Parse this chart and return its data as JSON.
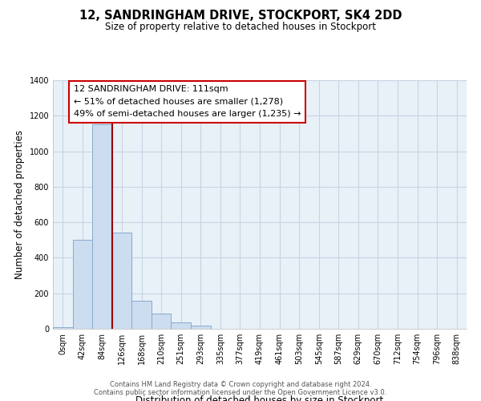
{
  "title": "12, SANDRINGHAM DRIVE, STOCKPORT, SK4 2DD",
  "subtitle": "Size of property relative to detached houses in Stockport",
  "xlabel": "Distribution of detached houses by size in Stockport",
  "ylabel": "Number of detached properties",
  "bar_labels": [
    "0sqm",
    "42sqm",
    "84sqm",
    "126sqm",
    "168sqm",
    "210sqm",
    "251sqm",
    "293sqm",
    "335sqm",
    "377sqm",
    "419sqm",
    "461sqm",
    "503sqm",
    "545sqm",
    "587sqm",
    "629sqm",
    "670sqm",
    "712sqm",
    "754sqm",
    "796sqm",
    "838sqm"
  ],
  "bar_values": [
    10,
    500,
    1150,
    540,
    160,
    85,
    35,
    20,
    0,
    0,
    0,
    0,
    0,
    0,
    0,
    0,
    0,
    0,
    0,
    0,
    0
  ],
  "bar_color": "#ccddf0",
  "bar_edge_color": "#88aacc",
  "vline_index": 2.5,
  "vline_color": "#990000",
  "ylim": [
    0,
    1400
  ],
  "yticks": [
    0,
    200,
    400,
    600,
    800,
    1000,
    1200,
    1400
  ],
  "annotation_title": "12 SANDRINGHAM DRIVE: 111sqm",
  "annotation_line1": "← 51% of detached houses are smaller (1,278)",
  "annotation_line2": "49% of semi-detached houses are larger (1,235) →",
  "footer1": "Contains HM Land Registry data © Crown copyright and database right 2024.",
  "footer2": "Contains public sector information licensed under the Open Government Licence v3.0.",
  "background_color": "#ffffff",
  "plot_bg_color": "#e8f0f8",
  "grid_color": "#c8d4e4"
}
